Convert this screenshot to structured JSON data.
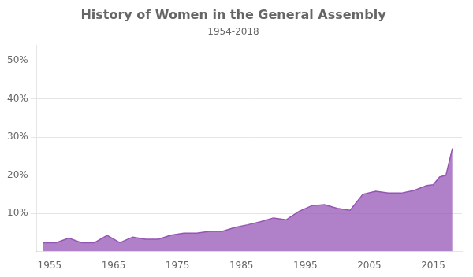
{
  "chart_data": {
    "type": "area",
    "title": "History of Women in the General Assembly",
    "subtitle": "1954-2018",
    "color": "#9655b5",
    "x": [
      1954,
      1956,
      1958,
      1960,
      1962,
      1964,
      1966,
      1968,
      1970,
      1972,
      1974,
      1976,
      1978,
      1980,
      1982,
      1984,
      1986,
      1988,
      1990,
      1992,
      1994,
      1996,
      1998,
      2000,
      2002,
      2004,
      2006,
      2008,
      2010,
      2012,
      2014,
      2015,
      2016,
      2017,
      2018
    ],
    "values": [
      2.3,
      2.3,
      3.5,
      2.3,
      2.3,
      4.2,
      2.3,
      3.8,
      3.2,
      3.2,
      4.3,
      4.8,
      4.8,
      5.3,
      5.3,
      6.3,
      7.0,
      7.8,
      8.8,
      8.3,
      10.5,
      12.0,
      12.3,
      11.3,
      10.8,
      15.0,
      15.8,
      15.3,
      15.3,
      16.0,
      17.3,
      17.5,
      19.5,
      20.0,
      27.0
    ],
    "xlim": [
      1953,
      2019.5
    ],
    "ylim": [
      0,
      54
    ],
    "xticks": [
      1955,
      1965,
      1975,
      1985,
      1995,
      2005,
      2015
    ],
    "yticks": [
      {
        "value": 10,
        "label": "10%"
      },
      {
        "value": 20,
        "label": "20%"
      },
      {
        "value": 30,
        "label": "30%"
      },
      {
        "value": 40,
        "label": "40%"
      },
      {
        "value": 50,
        "label": "50%"
      }
    ],
    "grid": true
  }
}
